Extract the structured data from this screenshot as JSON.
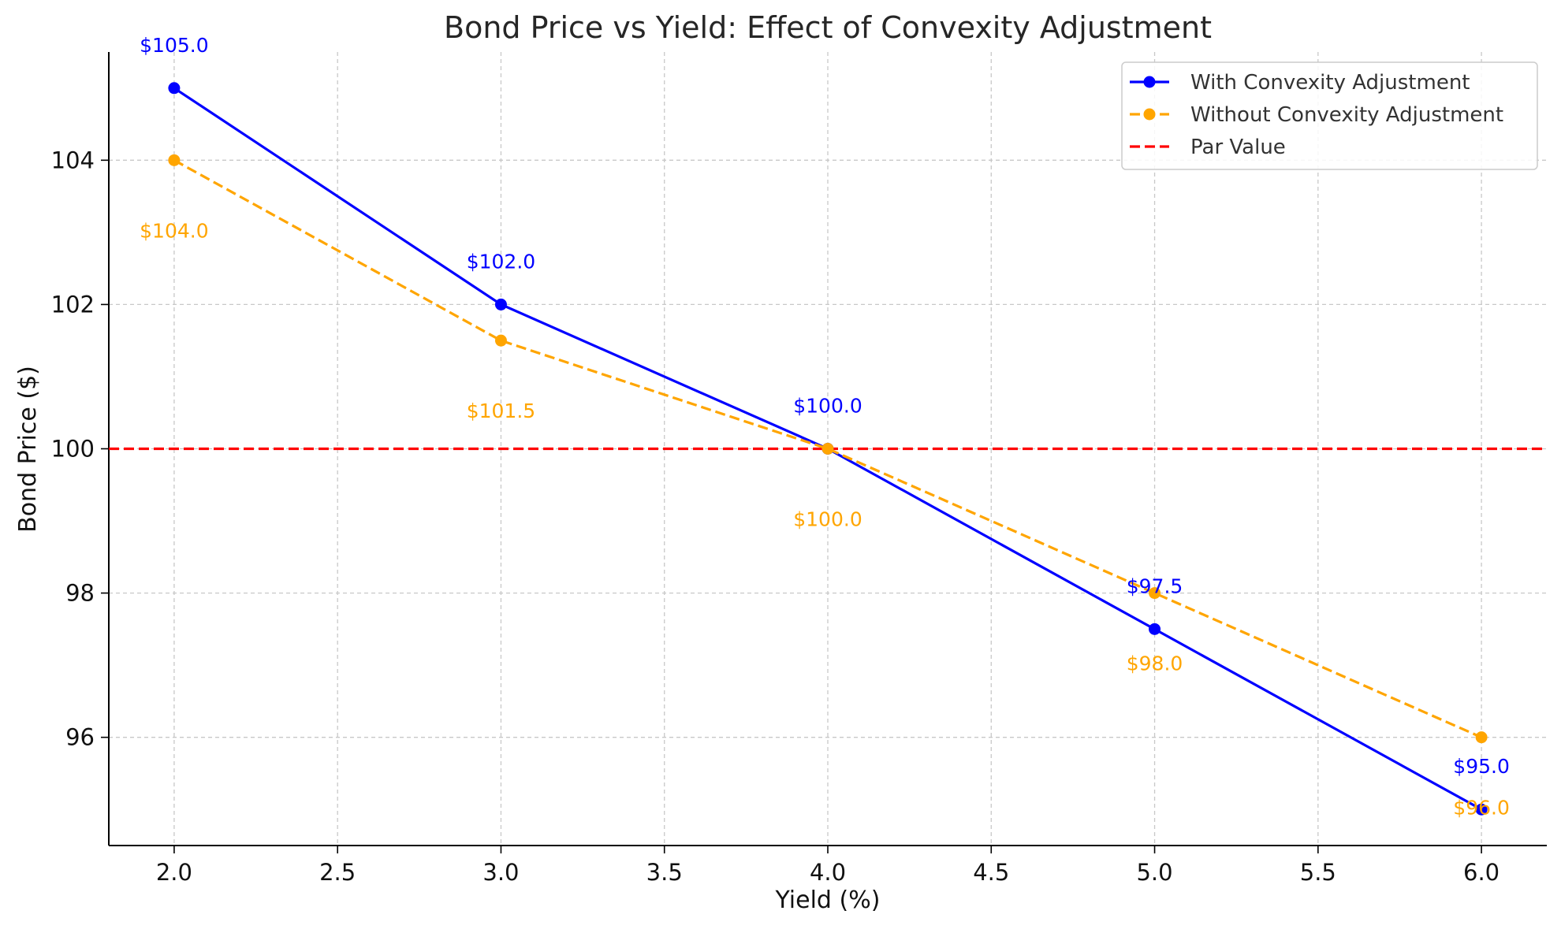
{
  "chart_data": {
    "type": "line",
    "title": "Bond Price vs Yield: Effect of Convexity Adjustment",
    "xlabel": "Yield (%)",
    "ylabel": "Bond Price ($)",
    "xlim": [
      1.8,
      6.2
    ],
    "ylim": [
      94.5,
      105.5
    ],
    "xticks": [
      2.0,
      2.5,
      3.0,
      3.5,
      4.0,
      4.5,
      5.0,
      5.5,
      6.0
    ],
    "xtick_labels": [
      "2.0",
      "2.5",
      "3.0",
      "3.5",
      "4.0",
      "4.5",
      "5.0",
      "5.5",
      "6.0"
    ],
    "yticks": [
      96,
      98,
      100,
      102,
      104
    ],
    "ytick_labels": [
      "96",
      "98",
      "100",
      "102",
      "104"
    ],
    "grid": true,
    "legend_position": "top-right",
    "x": [
      2.0,
      3.0,
      4.0,
      5.0,
      6.0
    ],
    "series": [
      {
        "name": "With Convexity Adjustment",
        "color": "#0000ff",
        "style": "solid",
        "marker": "circle",
        "values": [
          105.0,
          102.0,
          100.0,
          97.5,
          95.0
        ],
        "labels": [
          "$105.0",
          "$102.0",
          "$100.0",
          "$97.5",
          "$95.0"
        ],
        "label_side": "above"
      },
      {
        "name": "Without Convexity Adjustment",
        "color": "#ffa500",
        "style": "dashed",
        "marker": "circle",
        "values": [
          104.0,
          101.5,
          100.0,
          98.0,
          96.0
        ],
        "labels": [
          "$104.0",
          "$101.5",
          "$100.0",
          "$98.0",
          "$96.0"
        ],
        "label_side": "below"
      }
    ],
    "reference_lines": [
      {
        "name": "Par Value",
        "y": 100,
        "color": "#ff0000",
        "style": "dashed"
      }
    ]
  }
}
